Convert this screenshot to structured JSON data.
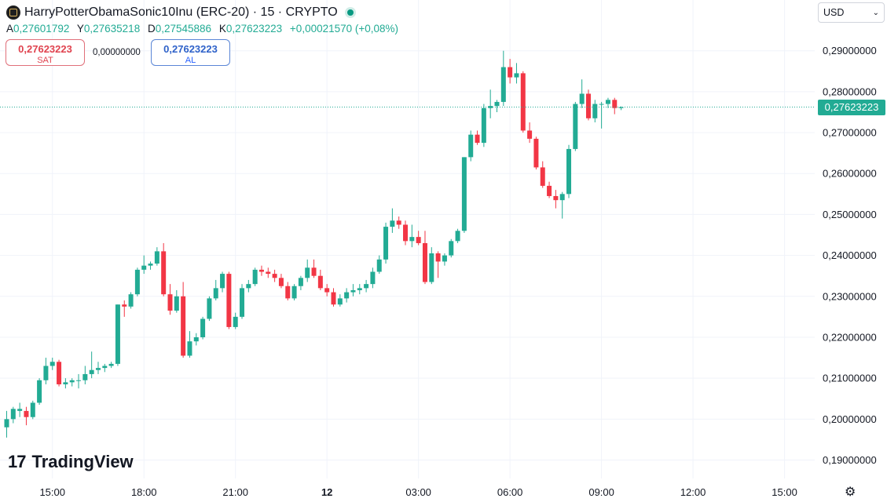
{
  "header": {
    "title": "HarryPotterObamaSonic10Inu (ERC-20) · 15 · CRYPTO",
    "ohlc": [
      {
        "k": "A",
        "v": "0,27601792"
      },
      {
        "k": "Y",
        "v": "0,27635218"
      },
      {
        "k": "D",
        "v": "0,27545886"
      },
      {
        "k": "K",
        "v": "0,27623223"
      }
    ],
    "change": "+0,00021570 (+0,08%)"
  },
  "trade": {
    "sell_price": "0,27623223",
    "sell_label": "SAT",
    "spread": "0,00000000",
    "buy_price": "0,27623223",
    "buy_label": "AL"
  },
  "currency": "USD",
  "last_price": "0,27623223",
  "brand": {
    "mark": "17",
    "name": "TradingView"
  },
  "colors": {
    "up": "#22ab94",
    "down": "#f23645",
    "grid": "#f0f3fa",
    "axis_text": "#131722"
  },
  "chart_data": {
    "type": "candlestick",
    "ylim": [
      0.1855,
      0.2955
    ],
    "y_ticks": [
      {
        "v": 0.19,
        "label": "0,19000000"
      },
      {
        "v": 0.2,
        "label": "0,20000000"
      },
      {
        "v": 0.21,
        "label": "0,21000000"
      },
      {
        "v": 0.22,
        "label": "0,22000000"
      },
      {
        "v": 0.23,
        "label": "0,23000000"
      },
      {
        "v": 0.24,
        "label": "0,24000000"
      },
      {
        "v": 0.25,
        "label": "0,25000000"
      },
      {
        "v": 0.26,
        "label": "0,26000000"
      },
      {
        "v": 0.27,
        "label": "0,27000000"
      },
      {
        "v": 0.28,
        "label": "0,28000000"
      },
      {
        "v": 0.29,
        "label": "0,29000000"
      }
    ],
    "x_ticks": [
      {
        "i": 7,
        "label": "15:00",
        "bold": false
      },
      {
        "i": 21,
        "label": "18:00",
        "bold": false
      },
      {
        "i": 35,
        "label": "21:00",
        "bold": false
      },
      {
        "i": 49,
        "label": "12",
        "bold": true
      },
      {
        "i": 63,
        "label": "03:00",
        "bold": false
      },
      {
        "i": 77,
        "label": "06:00",
        "bold": false
      },
      {
        "i": 91,
        "label": "09:00",
        "bold": false
      },
      {
        "i": 105,
        "label": "12:00",
        "bold": false
      },
      {
        "i": 119,
        "label": "15:00",
        "bold": false
      }
    ],
    "last_price": 0.27623223,
    "ohlc": [
      [
        0.198,
        0.202,
        0.1955,
        0.2
      ],
      [
        0.2,
        0.203,
        0.199,
        0.2025
      ],
      [
        0.202,
        0.204,
        0.2005,
        0.2025
      ],
      [
        0.202,
        0.203,
        0.1985,
        0.2005
      ],
      [
        0.2005,
        0.2045,
        0.2,
        0.204
      ],
      [
        0.204,
        0.21,
        0.2035,
        0.2095
      ],
      [
        0.2095,
        0.215,
        0.2085,
        0.213
      ],
      [
        0.213,
        0.215,
        0.212,
        0.214
      ],
      [
        0.214,
        0.2145,
        0.208,
        0.2085
      ],
      [
        0.2085,
        0.21,
        0.2075,
        0.209
      ],
      [
        0.209,
        0.21,
        0.208,
        0.2095
      ],
      [
        0.2095,
        0.211,
        0.2075,
        0.2095
      ],
      [
        0.2095,
        0.213,
        0.2085,
        0.211
      ],
      [
        0.211,
        0.2165,
        0.21,
        0.212
      ],
      [
        0.212,
        0.214,
        0.211,
        0.2125
      ],
      [
        0.2125,
        0.2135,
        0.2115,
        0.213
      ],
      [
        0.213,
        0.214,
        0.2125,
        0.2135
      ],
      [
        0.2135,
        0.228,
        0.213,
        0.228
      ],
      [
        0.228,
        0.229,
        0.225,
        0.2275
      ],
      [
        0.2275,
        0.231,
        0.227,
        0.2305
      ],
      [
        0.2305,
        0.237,
        0.23,
        0.2365
      ],
      [
        0.2365,
        0.24,
        0.2355,
        0.2375
      ],
      [
        0.2375,
        0.2385,
        0.2365,
        0.238
      ],
      [
        0.238,
        0.242,
        0.2375,
        0.241
      ],
      [
        0.241,
        0.243,
        0.23,
        0.2305
      ],
      [
        0.2305,
        0.233,
        0.2255,
        0.2265
      ],
      [
        0.2265,
        0.2315,
        0.226,
        0.23
      ],
      [
        0.23,
        0.2335,
        0.215,
        0.2155
      ],
      [
        0.2155,
        0.2215,
        0.215,
        0.219
      ],
      [
        0.219,
        0.221,
        0.218,
        0.22
      ],
      [
        0.22,
        0.225,
        0.2195,
        0.2245
      ],
      [
        0.2245,
        0.23,
        0.224,
        0.2295
      ],
      [
        0.2295,
        0.234,
        0.229,
        0.232
      ],
      [
        0.232,
        0.236,
        0.231,
        0.2355
      ],
      [
        0.2355,
        0.236,
        0.222,
        0.2225
      ],
      [
        0.2225,
        0.226,
        0.222,
        0.225
      ],
      [
        0.225,
        0.233,
        0.2245,
        0.232
      ],
      [
        0.232,
        0.234,
        0.231,
        0.233
      ],
      [
        0.233,
        0.237,
        0.2325,
        0.2365
      ],
      [
        0.2365,
        0.2375,
        0.235,
        0.236
      ],
      [
        0.236,
        0.237,
        0.2345,
        0.2355
      ],
      [
        0.2355,
        0.2365,
        0.2335,
        0.2345
      ],
      [
        0.2345,
        0.2355,
        0.232,
        0.2325
      ],
      [
        0.2325,
        0.2335,
        0.229,
        0.2295
      ],
      [
        0.2295,
        0.233,
        0.229,
        0.2325
      ],
      [
        0.2325,
        0.235,
        0.2315,
        0.2345
      ],
      [
        0.2345,
        0.239,
        0.2335,
        0.237
      ],
      [
        0.237,
        0.239,
        0.2345,
        0.235
      ],
      [
        0.235,
        0.2365,
        0.2315,
        0.232
      ],
      [
        0.232,
        0.233,
        0.23,
        0.231
      ],
      [
        0.231,
        0.232,
        0.2275,
        0.228
      ],
      [
        0.228,
        0.2305,
        0.2275,
        0.2295
      ],
      [
        0.2295,
        0.232,
        0.2285,
        0.231
      ],
      [
        0.231,
        0.233,
        0.23,
        0.2315
      ],
      [
        0.2315,
        0.233,
        0.2305,
        0.232
      ],
      [
        0.232,
        0.234,
        0.231,
        0.233
      ],
      [
        0.233,
        0.237,
        0.232,
        0.236
      ],
      [
        0.236,
        0.24,
        0.2355,
        0.239
      ],
      [
        0.239,
        0.248,
        0.238,
        0.247
      ],
      [
        0.247,
        0.2515,
        0.2455,
        0.2485
      ],
      [
        0.2485,
        0.2495,
        0.2465,
        0.2475
      ],
      [
        0.2475,
        0.2485,
        0.2425,
        0.2435
      ],
      [
        0.2435,
        0.2475,
        0.242,
        0.2445
      ],
      [
        0.2445,
        0.246,
        0.2425,
        0.243
      ],
      [
        0.243,
        0.246,
        0.233,
        0.2335
      ],
      [
        0.2335,
        0.242,
        0.233,
        0.2405
      ],
      [
        0.2405,
        0.241,
        0.2345,
        0.2385
      ],
      [
        0.2385,
        0.2405,
        0.2375,
        0.24
      ],
      [
        0.24,
        0.244,
        0.2395,
        0.2435
      ],
      [
        0.2435,
        0.2465,
        0.243,
        0.246
      ],
      [
        0.246,
        0.264,
        0.2455,
        0.264
      ],
      [
        0.264,
        0.2705,
        0.263,
        0.2695
      ],
      [
        0.2695,
        0.2705,
        0.267,
        0.2675
      ],
      [
        0.2675,
        0.277,
        0.2665,
        0.276
      ],
      [
        0.276,
        0.2805,
        0.2735,
        0.2765
      ],
      [
        0.2765,
        0.278,
        0.275,
        0.2775
      ],
      [
        0.2775,
        0.29,
        0.2765,
        0.286
      ],
      [
        0.286,
        0.288,
        0.282,
        0.2835
      ],
      [
        0.2835,
        0.287,
        0.282,
        0.2845
      ],
      [
        0.2845,
        0.285,
        0.27,
        0.2705
      ],
      [
        0.2705,
        0.2725,
        0.2675,
        0.2685
      ],
      [
        0.2685,
        0.269,
        0.261,
        0.2615
      ],
      [
        0.2615,
        0.263,
        0.2565,
        0.257
      ],
      [
        0.257,
        0.258,
        0.254,
        0.2545
      ],
      [
        0.2545,
        0.256,
        0.2515,
        0.2535
      ],
      [
        0.2535,
        0.2555,
        0.249,
        0.255
      ],
      [
        0.255,
        0.267,
        0.254,
        0.266
      ],
      [
        0.266,
        0.2775,
        0.2655,
        0.277
      ],
      [
        0.277,
        0.283,
        0.276,
        0.2795
      ],
      [
        0.2795,
        0.2805,
        0.273,
        0.2735
      ],
      [
        0.2735,
        0.278,
        0.2725,
        0.277
      ],
      [
        0.277,
        0.2775,
        0.271,
        0.277
      ],
      [
        0.277,
        0.2785,
        0.276,
        0.278
      ],
      [
        0.278,
        0.2785,
        0.2745,
        0.276
      ],
      [
        0.276,
        0.2764,
        0.2755,
        0.2762
      ]
    ]
  }
}
